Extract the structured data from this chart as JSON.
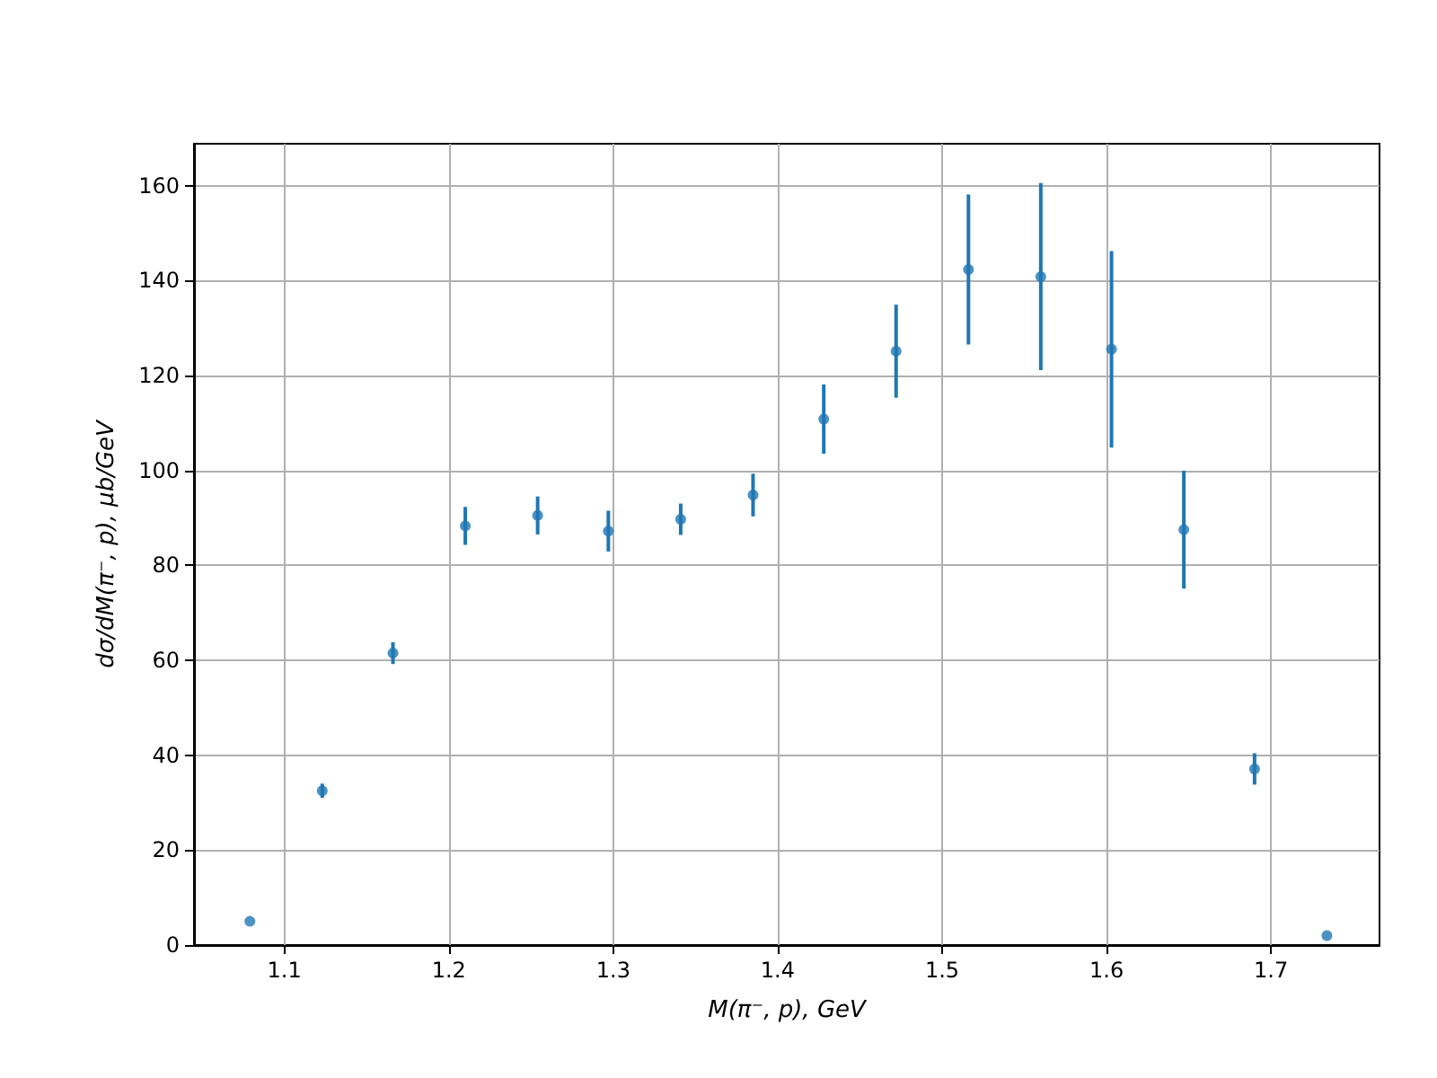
{
  "chart_data": {
    "type": "scatter",
    "xlabel": "M(π⁻, p), GeV",
    "ylabel": "dσ/dM(π⁻, p), μb/GeV",
    "x": [
      1.079,
      1.123,
      1.166,
      1.21,
      1.254,
      1.297,
      1.341,
      1.385,
      1.428,
      1.472,
      1.516,
      1.56,
      1.603,
      1.647,
      1.69,
      1.734
    ],
    "series": [
      {
        "color": "#1f77b4",
        "values": [
          5,
          32.5,
          61.5,
          88.3,
          90.5,
          87.2,
          89.7,
          94.8,
          110.8,
          125.1,
          142.3,
          140.8,
          125.5,
          87.5,
          37.1,
          2
        ],
        "errors": [
          null,
          1.5,
          2.3,
          4,
          4,
          4.3,
          3.3,
          4.5,
          7.3,
          9.8,
          15.8,
          19.7,
          20.7,
          12.4,
          3.3,
          null
        ]
      }
    ],
    "xlim": [
      1.045,
      1.766
    ],
    "xticks": [
      1.1,
      1.2,
      1.3,
      1.4,
      1.5,
      1.6,
      1.7
    ],
    "ylim": [
      0,
      168.8
    ],
    "yticks": [
      0,
      20,
      40,
      60,
      80,
      100,
      120,
      140,
      160
    ],
    "grid": true,
    "marker": "circle"
  }
}
